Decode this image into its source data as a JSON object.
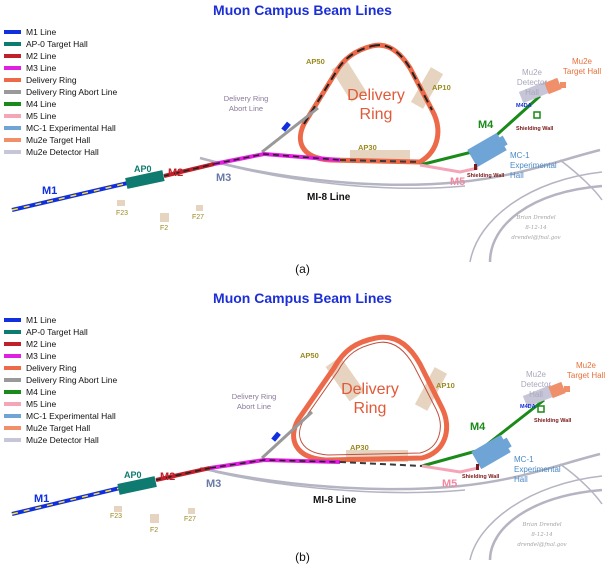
{
  "title": "Muon Campus Beam Lines",
  "legend": [
    {
      "label": "M1 Line",
      "color": "#1030e0"
    },
    {
      "label": "AP-0 Target Hall",
      "color": "#0f7a70"
    },
    {
      "label": "M2 Line",
      "color": "#c0202a"
    },
    {
      "label": "M3 Line",
      "color": "#e020e0"
    },
    {
      "label": "Delivery Ring",
      "color": "#ec6a4a"
    },
    {
      "label": "Delivery Ring Abort Line",
      "color": "#999999"
    },
    {
      "label": "M4 Line",
      "color": "#1a8a1a"
    },
    {
      "label": "M5 Line",
      "color": "#f4a6b8"
    },
    {
      "label": "MC-1 Experimental Hall",
      "color": "#6fa4d6"
    },
    {
      "label": "Mu2e Target Hall",
      "color": "#f0906a"
    },
    {
      "label": "Mu2e Detector Hall",
      "color": "#c6c6d8"
    }
  ],
  "labels": {
    "m1": "M1",
    "m2": "M2",
    "m3": "M3",
    "m4": "M4",
    "m5": "M5",
    "ap0": "AP0",
    "ap10": "AP10",
    "ap30": "AP30",
    "ap50": "AP50",
    "f23": "F23",
    "f2": "F2",
    "f27": "F27",
    "delivery_ring_1": "Delivery",
    "delivery_ring_2": "Ring",
    "abort_1": "Delivery Ring",
    "abort_2": "Abort Line",
    "mc1_1": "MC-1",
    "mc1_2": "Experimental",
    "mc1_3": "Hall",
    "mu2e_target_1": "Mu2e",
    "mu2e_target_2": "Target Hall",
    "mu2e_det_1": "Mu2e",
    "mu2e_det_2": "Detector",
    "mu2e_det_3": "Hall",
    "m4da": "M4DA",
    "shielding_wall": "Shielding Wall",
    "mi8": "MI-8 Line",
    "signature_1": "Brian Drendel",
    "signature_2": "8-12-14",
    "signature_3": "drendel@fnal.gov"
  },
  "captions": {
    "a": "(a)",
    "b": "(b)"
  }
}
